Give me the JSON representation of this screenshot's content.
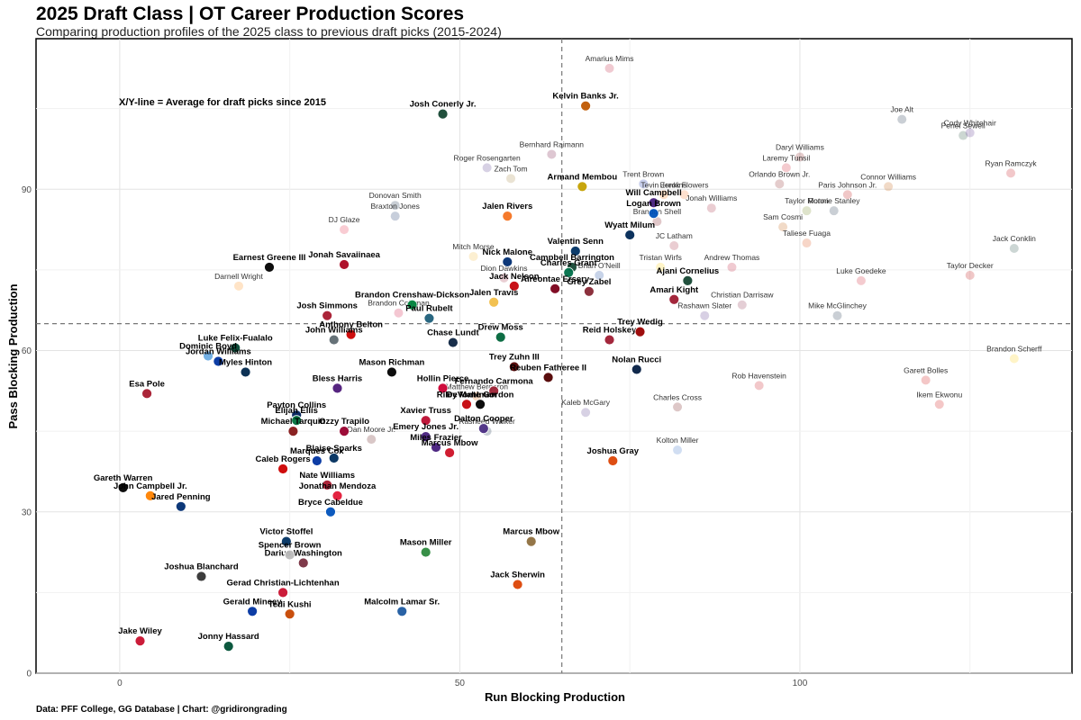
{
  "header": {
    "title": "2025 Draft Class | OT Career Production Scores",
    "subtitle": "Comparing production profiles of the 2025 class to previous draft picks (2015-2024)"
  },
  "footer": {
    "caption": "Data: PFF College, GG Database | Chart: @gridirongrading"
  },
  "chart_data": {
    "type": "scatter",
    "xlabel": "Run Blocking Production",
    "ylabel": "Pass Blocking Production",
    "xlim": [
      -12.3,
      140
    ],
    "ylim": [
      0,
      118
    ],
    "xticks": [
      0,
      50,
      100
    ],
    "yticks": [
      0,
      30,
      60,
      90
    ],
    "grid": true,
    "annotation": "X/Y-line = Average for draft picks since 2015",
    "reference_lines": {
      "x": 65,
      "y": 65
    },
    "series": [
      {
        "name": "2025 class",
        "points": [
          {
            "label": "Josh Conerly Jr.",
            "x": 47.5,
            "y": 104,
            "color": "#154733"
          },
          {
            "label": "Kelvin Banks Jr.",
            "x": 68.5,
            "y": 105.5,
            "color": "#bf5700"
          },
          {
            "label": "Armand Membou",
            "x": 68,
            "y": 90.5,
            "color": "#c4a000"
          },
          {
            "label": "Will Campbell",
            "x": 78.5,
            "y": 87.5,
            "color": "#461d7c"
          },
          {
            "label": "Logan Brown",
            "x": 78.5,
            "y": 85.5,
            "color": "#0051ba"
          },
          {
            "label": "Jalen Rivers",
            "x": 57,
            "y": 85,
            "color": "#f47321"
          },
          {
            "label": "Wyatt Milum",
            "x": 75,
            "y": 81.5,
            "color": "#002855"
          },
          {
            "label": "Valentin Senn",
            "x": 67,
            "y": 78.5,
            "color": "#003263"
          },
          {
            "label": "Campbell Barrington",
            "x": 66.5,
            "y": 75.5,
            "color": "#154734"
          },
          {
            "label": "Nick Malone",
            "x": 57,
            "y": 76.5,
            "color": "#002d72"
          },
          {
            "label": "Charles Grant",
            "x": 66,
            "y": 74.5,
            "color": "#00704a"
          },
          {
            "label": "Ajani Cornelius",
            "x": 83.5,
            "y": 73,
            "color": "#154733"
          },
          {
            "label": "Grey Zabel",
            "x": 69,
            "y": 71,
            "color": "#862633"
          },
          {
            "label": "Jack Nelson",
            "x": 58,
            "y": 72,
            "color": "#c5050c"
          },
          {
            "label": "Amari Kight",
            "x": 81.5,
            "y": 69.5,
            "color": "#9e1b32"
          },
          {
            "label": "Aireontae Ersery",
            "x": 64,
            "y": 71.5,
            "color": "#7a0019"
          },
          {
            "label": "Jalen Travis",
            "x": 55,
            "y": 69,
            "color": "#f1be48"
          },
          {
            "label": "Earnest Greene III",
            "x": 22,
            "y": 75.5,
            "color": "#000000"
          },
          {
            "label": "Jonah Savaiinaea",
            "x": 33,
            "y": 76,
            "color": "#ab0520"
          },
          {
            "label": "Brandon Crenshaw-Dickson",
            "x": 43,
            "y": 68.5,
            "color": "#00843d"
          },
          {
            "label": "Paul Rubelt",
            "x": 45.5,
            "y": 66,
            "color": "#1d5f7a"
          },
          {
            "label": "Josh Simmons",
            "x": 30.5,
            "y": 66.5,
            "color": "#a6192e"
          },
          {
            "label": "Anthony Belton",
            "x": 34,
            "y": 63,
            "color": "#cc0000"
          },
          {
            "label": "John Williams",
            "x": 31.5,
            "y": 62,
            "color": "#5e6a71"
          },
          {
            "label": "Chase Lundt",
            "x": 49,
            "y": 61.5,
            "color": "#0c2340"
          },
          {
            "label": "Drew Moss",
            "x": 56,
            "y": 62.5,
            "color": "#00653a"
          },
          {
            "label": "Reid Holskey",
            "x": 72,
            "y": 62,
            "color": "#9e1b32"
          },
          {
            "label": "Trey Wedig",
            "x": 76.5,
            "y": 63.5,
            "color": "#990000"
          },
          {
            "label": "Luke Felix-Fualalo",
            "x": 17,
            "y": 60.5,
            "color": "#024731"
          },
          {
            "label": "Dominic Boyd",
            "x": 13,
            "y": 59,
            "color": "#6cace4"
          },
          {
            "label": "Jordan Williams",
            "x": 14.5,
            "y": 58,
            "color": "#0033a0"
          },
          {
            "label": "Myles Hinton",
            "x": 18.5,
            "y": 56,
            "color": "#00274c"
          },
          {
            "label": "Mason Richman",
            "x": 40,
            "y": 56,
            "color": "#000000"
          },
          {
            "label": "Trey Zuhn III",
            "x": 58,
            "y": 57,
            "color": "#500000"
          },
          {
            "label": "Reuben Fatheree II",
            "x": 63,
            "y": 55,
            "color": "#500000"
          },
          {
            "label": "Nolan Rucci",
            "x": 76,
            "y": 56.5,
            "color": "#041e42"
          },
          {
            "label": "Bless Harris",
            "x": 32,
            "y": 53,
            "color": "#4d1979"
          },
          {
            "label": "Hollin Pierce",
            "x": 47.5,
            "y": 53,
            "color": "#cc0033"
          },
          {
            "label": "Fernando Carmona",
            "x": 55,
            "y": 52.5,
            "color": "#9d2235"
          },
          {
            "label": "Esa Pole",
            "x": 4,
            "y": 52,
            "color": "#a6192e"
          },
          {
            "label": "Riley Mahlman",
            "x": 51,
            "y": 50,
            "color": "#c5050c"
          },
          {
            "label": "DeVonte Gordon",
            "x": 53,
            "y": 50,
            "color": "#000000"
          },
          {
            "label": "Payton Collins",
            "x": 26,
            "y": 48,
            "color": "#00205b"
          },
          {
            "label": "Elijah Ellis",
            "x": 26,
            "y": 47,
            "color": "#00703c"
          },
          {
            "label": "Xavier Truss",
            "x": 45,
            "y": 47,
            "color": "#ba0c2f"
          },
          {
            "label": "Dalton Cooper",
            "x": 53.5,
            "y": 45.5,
            "color": "#4b2e83"
          },
          {
            "label": "Michael Tarquin",
            "x": 25.5,
            "y": 45,
            "color": "#841617"
          },
          {
            "label": "Ozzy Trapilo",
            "x": 33,
            "y": 45,
            "color": "#98002e"
          },
          {
            "label": "Emery Jones Jr.",
            "x": 45,
            "y": 44,
            "color": "#461d7c"
          },
          {
            "label": "Miles Frazier",
            "x": 46.5,
            "y": 42,
            "color": "#461d7c"
          },
          {
            "label": "Marcus Mbow",
            "x": 48.5,
            "y": 41,
            "color": "#ce1126"
          },
          {
            "label": "Marques Cox",
            "x": 29,
            "y": 39.5,
            "color": "#0033a0"
          },
          {
            "label": "Blaise Sparks",
            "x": 31.5,
            "y": 40,
            "color": "#002e5d"
          },
          {
            "label": "Caleb Rogers",
            "x": 24,
            "y": 38,
            "color": "#cc0000"
          },
          {
            "label": "Joshua Gray",
            "x": 72.5,
            "y": 39.5,
            "color": "#dc4405"
          },
          {
            "label": "Gareth Warren",
            "x": 0.5,
            "y": 34.5,
            "color": "#000000"
          },
          {
            "label": "John Campbell Jr.",
            "x": 4.5,
            "y": 33,
            "color": "#ff8200"
          },
          {
            "label": "Nate Williams",
            "x": 30.5,
            "y": 35,
            "color": "#a6192e"
          },
          {
            "label": "Jonathan Mendoza",
            "x": 32,
            "y": 33,
            "color": "#e31837"
          },
          {
            "label": "Jared Penning",
            "x": 9,
            "y": 31,
            "color": "#002d72"
          },
          {
            "label": "Bryce Cabeldue",
            "x": 31,
            "y": 30,
            "color": "#0051ba"
          },
          {
            "label": "Victor Stoffel",
            "x": 24.5,
            "y": 24.5,
            "color": "#003262"
          },
          {
            "label": "Darius Washington",
            "x": 27,
            "y": 20.5,
            "color": "#782f40"
          },
          {
            "label": "Spencer Brown",
            "x": 25,
            "y": 22,
            "color": "#bbbbbb"
          },
          {
            "label": "Mason Miller",
            "x": 45,
            "y": 22.5,
            "color": "#2d8a3e"
          },
          {
            "label": "Marcus Mbow",
            "x": 60.5,
            "y": 24.5,
            "color": "#8e6f3e"
          },
          {
            "label": "Joshua Blanchard",
            "x": 12,
            "y": 18,
            "color": "#333333"
          },
          {
            "label": "Gerad Christian-Lichtenhan",
            "x": 24,
            "y": 15,
            "color": "#c8102e"
          },
          {
            "label": "Jack Sherwin",
            "x": 58.5,
            "y": 16.5,
            "color": "#dc4405"
          },
          {
            "label": "Gerald Mincey",
            "x": 19.5,
            "y": 11.5,
            "color": "#0033a0"
          },
          {
            "label": "Tedi Kushi",
            "x": 25,
            "y": 11,
            "color": "#c64600"
          },
          {
            "label": "Malcolm Lamar Sr.",
            "x": 41.5,
            "y": 11.5,
            "color": "#1e5aa0"
          },
          {
            "label": "Jake Wiley",
            "x": 3,
            "y": 6,
            "color": "#c8102e"
          },
          {
            "label": "Jonny Hassard",
            "x": 16,
            "y": 5,
            "color": "#005035"
          }
        ]
      },
      {
        "name": "Previous draft picks (2015-2024)",
        "points": [
          {
            "label": "Amarius Mims",
            "x": 72,
            "y": 112.5,
            "color": "#ba0c2f"
          },
          {
            "label": "Bernhard Raimann",
            "x": 63.5,
            "y": 96.5,
            "color": "#6a0032"
          },
          {
            "label": "Roger Rosengarten",
            "x": 54,
            "y": 94,
            "color": "#4b2e83"
          },
          {
            "label": "Zach Tom",
            "x": 57.5,
            "y": 92,
            "color": "#9e7e38"
          },
          {
            "label": "Donovan Smith",
            "x": 40.5,
            "y": 87,
            "color": "#041e42"
          },
          {
            "label": "Braxton Jones",
            "x": 40.5,
            "y": 85,
            "color": "#00205b"
          },
          {
            "label": "DJ Glaze",
            "x": 33,
            "y": 82.5,
            "color": "#e31837"
          },
          {
            "label": "Trent Brown",
            "x": 77,
            "y": 91,
            "color": "#0021a5"
          },
          {
            "label": "Tevin Jenkins",
            "x": 80,
            "y": 89,
            "color": "#ff7300"
          },
          {
            "label": "Ereck Flowers",
            "x": 83,
            "y": 89,
            "color": "#f47321"
          },
          {
            "label": "Jonah Williams",
            "x": 87,
            "y": 86.5,
            "color": "#9e1b32"
          },
          {
            "label": "Brandon Shell",
            "x": 79,
            "y": 84,
            "color": "#73000a"
          },
          {
            "label": "Mitch Morse",
            "x": 52,
            "y": 77.5,
            "color": "#f1b82d"
          },
          {
            "label": "Brian O'Neill",
            "x": 70.5,
            "y": 74,
            "color": "#003594"
          },
          {
            "label": "Dion Dawkins",
            "x": 56.5,
            "y": 73.5,
            "color": "#9d2235"
          },
          {
            "label": "JC Latham",
            "x": 81.5,
            "y": 79.5,
            "color": "#9e1b32"
          },
          {
            "label": "Tristan Wirfs",
            "x": 79.5,
            "y": 75.5,
            "color": "#ffcd00"
          },
          {
            "label": "Andrew Thomas",
            "x": 90,
            "y": 75.5,
            "color": "#ba0c2f"
          },
          {
            "label": "Darnell Wright",
            "x": 17.5,
            "y": 72,
            "color": "#ff8200"
          },
          {
            "label": "Brandon Coleman",
            "x": 41,
            "y": 67,
            "color": "#cc0033"
          },
          {
            "label": "Christian Darrisaw",
            "x": 91.5,
            "y": 68.5,
            "color": "#861f41"
          },
          {
            "label": "Rashawn Slater",
            "x": 86,
            "y": 66.5,
            "color": "#4e2a84"
          },
          {
            "label": "Mike McGlinchey",
            "x": 105.5,
            "y": 66.5,
            "color": "#0c2340"
          },
          {
            "label": "Joe Alt",
            "x": 115,
            "y": 103,
            "color": "#0c2340"
          },
          {
            "label": "Penei Sewell",
            "x": 124,
            "y": 100,
            "color": "#154733"
          },
          {
            "label": "Cody Whitehair",
            "x": 125,
            "y": 100.5,
            "color": "#512888"
          },
          {
            "label": "Daryl Williams",
            "x": 100,
            "y": 96,
            "color": "#841617"
          },
          {
            "label": "Laremy Tunsil",
            "x": 98,
            "y": 94,
            "color": "#ce1126"
          },
          {
            "label": "Orlando Brown Jr.",
            "x": 97,
            "y": 91,
            "color": "#841617"
          },
          {
            "label": "Ryan Ramczyk",
            "x": 131,
            "y": 93,
            "color": "#c5050c"
          },
          {
            "label": "Connor Williams",
            "x": 113,
            "y": 90.5,
            "color": "#bf5700"
          },
          {
            "label": "Paris Johnson Jr.",
            "x": 107,
            "y": 89,
            "color": "#bb0000"
          },
          {
            "label": "Taylor Moton",
            "x": 101,
            "y": 86,
            "color": "#6a7f10"
          },
          {
            "label": "Ronnie Stanley",
            "x": 105,
            "y": 86,
            "color": "#0c2340"
          },
          {
            "label": "Sam Cosmi",
            "x": 97.5,
            "y": 83,
            "color": "#bf5700"
          },
          {
            "label": "Taliese Fuaga",
            "x": 101,
            "y": 80,
            "color": "#dc4405"
          },
          {
            "label": "Jack Conklin",
            "x": 131.5,
            "y": 79,
            "color": "#18453b"
          },
          {
            "label": "Taylor Decker",
            "x": 125,
            "y": 74,
            "color": "#bb0000"
          },
          {
            "label": "Luke Goedeke",
            "x": 109,
            "y": 73,
            "color": "#ce1126"
          },
          {
            "label": "Brandon Scherff",
            "x": 131.5,
            "y": 58.5,
            "color": "#ffcd00"
          },
          {
            "label": "Garett Bolles",
            "x": 118.5,
            "y": 54.5,
            "color": "#cc0000"
          },
          {
            "label": "Ikem Ekwonu",
            "x": 120.5,
            "y": 50,
            "color": "#cc0000"
          },
          {
            "label": "Rob Havenstein",
            "x": 94,
            "y": 53.5,
            "color": "#c5050c"
          },
          {
            "label": "Charles Cross",
            "x": 82,
            "y": 49.5,
            "color": "#660000"
          },
          {
            "label": "Kaleb McGary",
            "x": 68.5,
            "y": 48.5,
            "color": "#4b2e83"
          },
          {
            "label": "Matthew Bergeron",
            "x": 52.5,
            "y": 51.5,
            "color": "#f76900"
          },
          {
            "label": "Rasheed Walker",
            "x": 54,
            "y": 45,
            "color": "#041e42"
          },
          {
            "label": "Dan Moore Jr.",
            "x": 37,
            "y": 43.5,
            "color": "#500000"
          },
          {
            "label": "Kolton Miller",
            "x": 82,
            "y": 41.5,
            "color": "#2d68c4"
          }
        ]
      }
    ]
  }
}
